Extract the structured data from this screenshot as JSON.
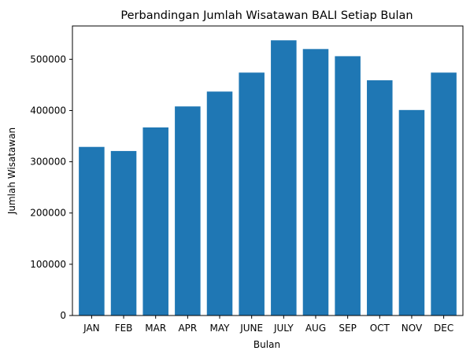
{
  "colors": {
    "bar": "#1f77b4",
    "axis": "#000000",
    "background": "#ffffff"
  },
  "chart_data": {
    "type": "bar",
    "title": "Perbandingan Jumlah Wisatawan BALI Setiap Bulan",
    "xlabel": "Bulan",
    "ylabel": "Jumlah Wisatawan",
    "categories": [
      "JAN",
      "FEB",
      "MAR",
      "APR",
      "MAY",
      "JUNE",
      "JULY",
      "AUG",
      "SEP",
      "OCT",
      "NOV",
      "DEC"
    ],
    "values": [
      329000,
      321000,
      367000,
      408000,
      437000,
      474000,
      537000,
      520000,
      506000,
      459000,
      401000,
      474000
    ],
    "ylim": [
      0,
      565000
    ],
    "yticks": [
      0,
      100000,
      200000,
      300000,
      400000,
      500000
    ],
    "ytick_labels": [
      "0",
      "100000",
      "200000",
      "300000",
      "400000",
      "500000"
    ],
    "grid": false
  }
}
